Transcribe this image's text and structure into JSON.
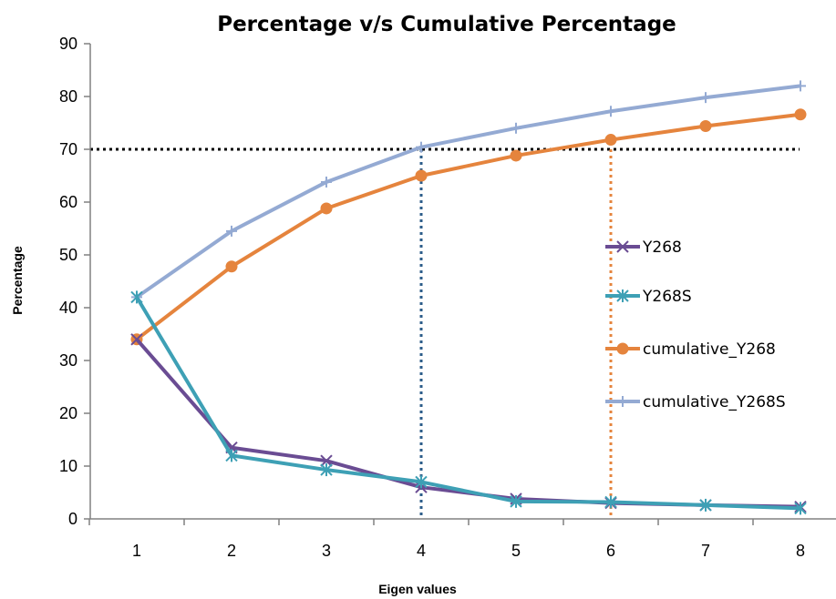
{
  "chart_data": {
    "type": "line",
    "title": "Percentage v/s Cumulative Percentage",
    "xlabel": "Eigen values",
    "ylabel": "Percentage",
    "x": [
      1,
      2,
      3,
      4,
      5,
      6,
      7,
      8
    ],
    "ylim": [
      0,
      90
    ],
    "yticks": [
      0,
      10,
      20,
      30,
      40,
      50,
      60,
      70,
      80,
      90
    ],
    "grid": false,
    "legend_position": "right",
    "series": [
      {
        "name": "Y268",
        "values": [
          34,
          13.5,
          11,
          6,
          3.8,
          3,
          2.6,
          2.3
        ],
        "color": "#6a4c93",
        "marker": "x"
      },
      {
        "name": "Y268S",
        "values": [
          42,
          12,
          9.3,
          7,
          3.3,
          3.2,
          2.6,
          2
        ],
        "color": "#3ea0b5",
        "marker": "star"
      },
      {
        "name": "cumulative_Y268",
        "values": [
          34,
          47.8,
          58.8,
          65,
          68.8,
          71.8,
          74.4,
          76.6
        ],
        "color": "#e5843d",
        "marker": "circle"
      },
      {
        "name": "cumulative_Y268S",
        "values": [
          42,
          54.5,
          63.8,
          70.4,
          74,
          77.2,
          79.8,
          82
        ],
        "color": "#94aad3",
        "marker": "plus"
      }
    ],
    "reference_lines": [
      {
        "axis": "y",
        "value": 70,
        "color": "#000000",
        "style": "dotted"
      },
      {
        "axis": "x",
        "value": 4,
        "color": "#2c5d8a",
        "style": "dotted"
      },
      {
        "axis": "x",
        "value": 6,
        "color": "#e5843d",
        "style": "dotted"
      }
    ]
  }
}
